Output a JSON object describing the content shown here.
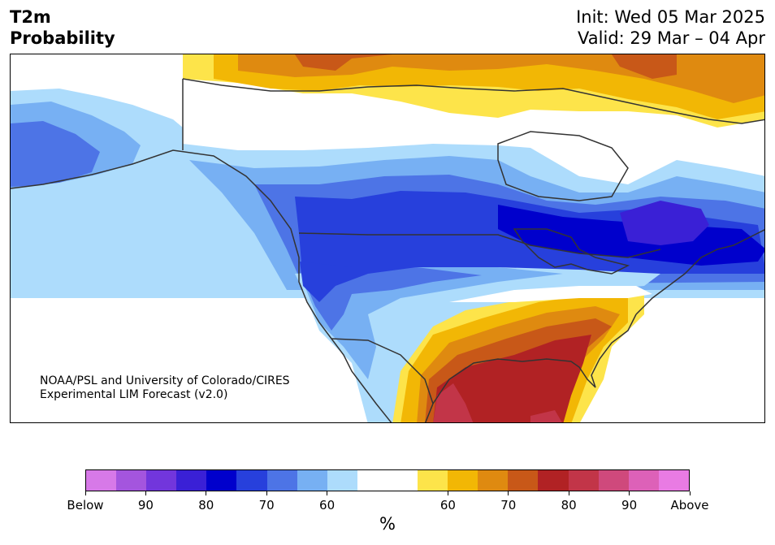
{
  "header": {
    "title": "T2m\nProbability",
    "init_line": "Init: Wed 05 Mar 2025",
    "valid_line": "Valid: 29 Mar – 04 Apr"
  },
  "credit": {
    "line1": "NOAA/PSL and University of Colorado/CIRES",
    "line2": "Experimental LIM Forecast (v2.0)"
  },
  "colorbar": {
    "colors": [
      "#d779e8",
      "#a455de",
      "#7236dc",
      "#3a20d6",
      "#0000cc",
      "#2740dc",
      "#4d74e6",
      "#77b0f3",
      "#addcfc",
      "#ffffff",
      "#ffffff",
      "#fde44a",
      "#f2b705",
      "#df8a10",
      "#c85818",
      "#b12224",
      "#c23548",
      "#cf497c",
      "#dd61b8",
      "#e97be3"
    ],
    "tick_labels": [
      "Below",
      "90",
      "80",
      "70",
      "60",
      "60",
      "70",
      "80",
      "90",
      "Above"
    ],
    "unit": "%"
  },
  "map": {
    "colors": {
      "land": "#ffffff",
      "coast": "#333333",
      "blue_light": "#addcfc",
      "blue_2": "#77b0f3",
      "blue_3": "#4d74e6",
      "blue_4": "#2740dc",
      "blue_5": "#0000cc",
      "blue_6": "#3a20d6",
      "yellow": "#fde44a",
      "gold": "#f2b705",
      "orange": "#df8a10",
      "rust": "#c85818",
      "red": "#b12224",
      "crimson": "#c23548"
    }
  }
}
